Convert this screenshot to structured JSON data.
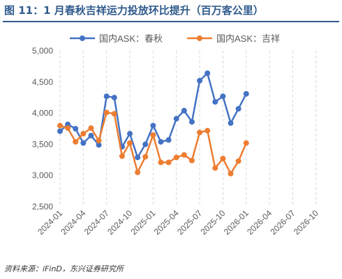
{
  "figure": {
    "title": "图 11：1 月春秋吉祥运力投放环比提升（百万客公里）",
    "source": "资料来源：iFinD，东兴证券研究所"
  },
  "colors": {
    "title": "#2f5a8c",
    "series_chunqiu": "#4472c4",
    "series_juneyao": "#ed7d31",
    "grid": "#d9d9d9",
    "axis_text": "#595959"
  },
  "chart_data": {
    "type": "line",
    "ylim": [
      2500,
      5000
    ],
    "yticks": [
      2500,
      3000,
      3500,
      4000,
      4500,
      5000
    ],
    "ytick_labels": [
      "2,500",
      "3,000",
      "3,500",
      "4,000",
      "4,500",
      "5,000"
    ],
    "x": [
      "2024-01",
      "2024-02",
      "2024-03",
      "2024-04",
      "2024-05",
      "2024-06",
      "2024-07",
      "2024-08",
      "2024-09",
      "2024-10",
      "2024-11",
      "2024-12",
      "2025-01",
      "2025-02",
      "2025-03",
      "2025-04",
      "2025-05",
      "2025-06",
      "2025-07",
      "2025-08",
      "2025-09",
      "2025-10",
      "2025-11",
      "2025-12",
      "2026-01"
    ],
    "xticks_all": [
      "2024-01",
      "2024-02",
      "2024-03",
      "2024-04",
      "2024-05",
      "2024-06",
      "2024-07",
      "2024-08",
      "2024-09",
      "2024-10",
      "2024-11",
      "2024-12",
      "2025-01",
      "2025-02",
      "2025-03",
      "2025-04",
      "2025-05",
      "2025-06",
      "2025-07",
      "2025-08",
      "2025-09",
      "2025-10",
      "2025-11",
      "2025-12",
      "2026-01",
      "2026-02",
      "2026-03",
      "2026-04",
      "2026-05",
      "2026-06",
      "2026-07",
      "2026-08",
      "2026-09",
      "2026-10",
      "2026-11",
      "2026-12"
    ],
    "xtick_labels": [
      "2024-01",
      "2024-04",
      "2024-07",
      "2024-10",
      "2025-01",
      "2025-04",
      "2025-07",
      "2025-10",
      "2026-01",
      "2026-04",
      "2026-07",
      "2026-10"
    ],
    "legend_position": "top",
    "grid": "vertical",
    "series": [
      {
        "name": "国内ASK：春秋",
        "color": "#4472c4",
        "values": [
          3710,
          3820,
          3750,
          3520,
          3640,
          3490,
          4270,
          4250,
          3460,
          3670,
          3290,
          3500,
          3800,
          3540,
          3570,
          3910,
          4040,
          3860,
          4520,
          4640,
          4180,
          4270,
          3840,
          4070,
          4310
        ]
      },
      {
        "name": "国内ASK：吉祥",
        "color": "#ed7d31",
        "values": [
          3800,
          3760,
          3540,
          3670,
          3760,
          3560,
          4010,
          3990,
          3310,
          3520,
          3050,
          3300,
          3650,
          3210,
          3210,
          3290,
          3330,
          3240,
          3690,
          3720,
          3120,
          3270,
          3030,
          3230,
          3520
        ]
      }
    ]
  }
}
